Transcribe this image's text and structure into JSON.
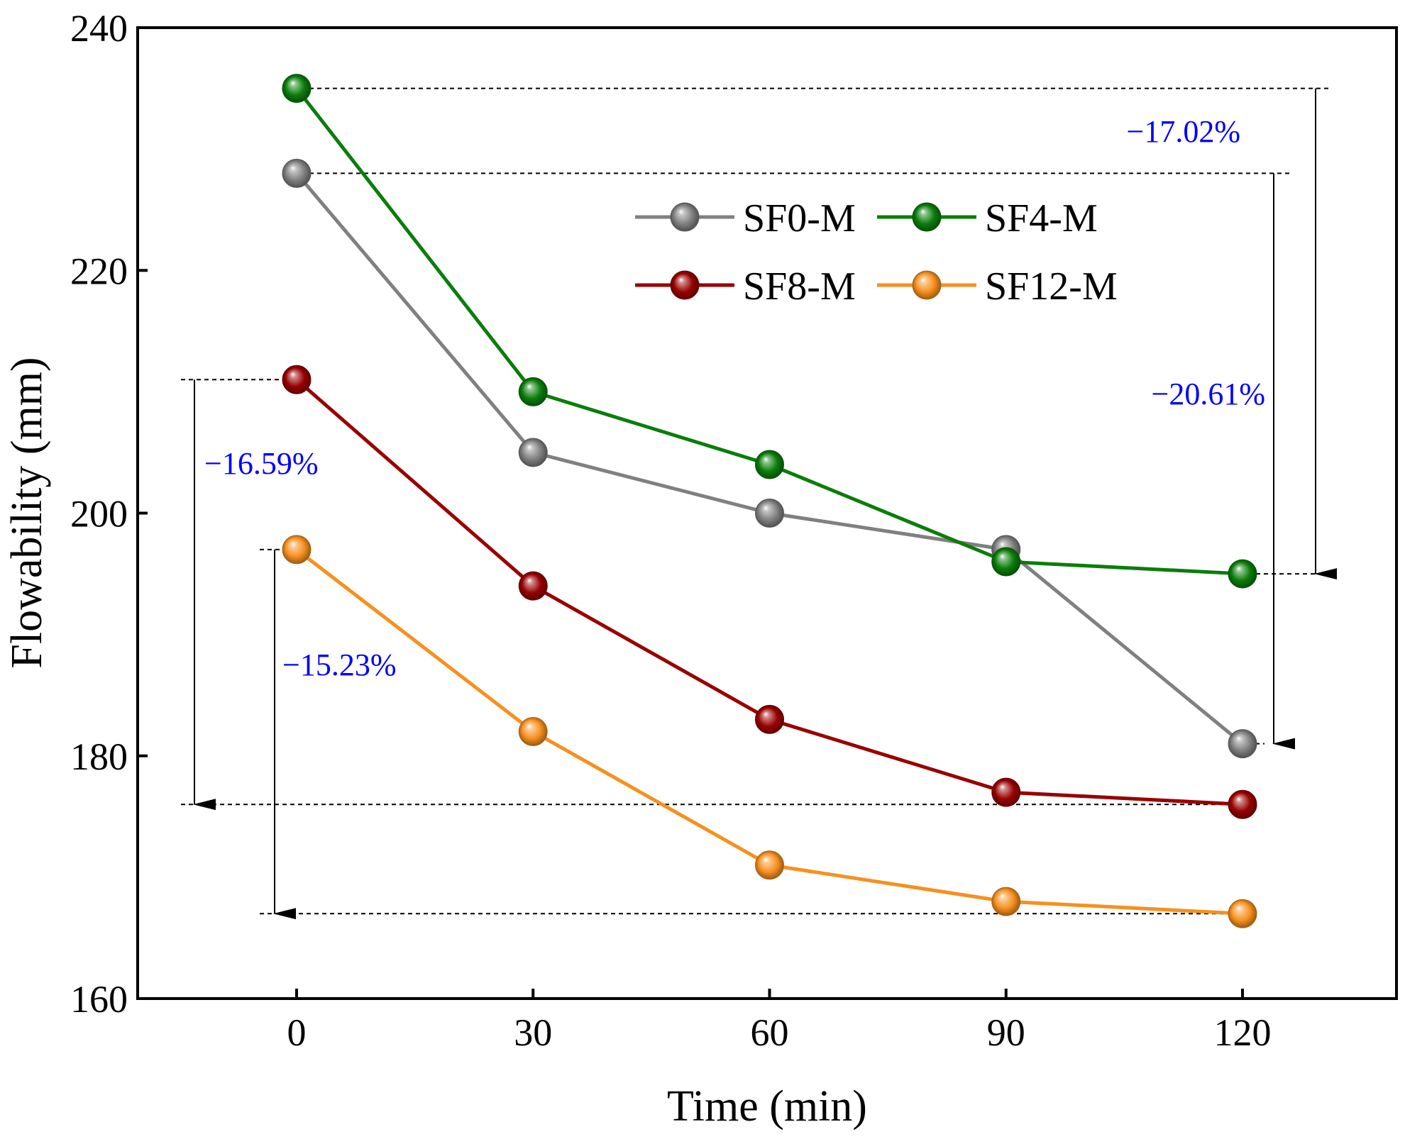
{
  "chart_data": {
    "type": "line",
    "xlabel": "Time (min)",
    "ylabel": "Flowability (mm)",
    "x": [
      0,
      30,
      60,
      90,
      120
    ],
    "x_tick_labels": [
      "0",
      "30",
      "60",
      "90",
      "120"
    ],
    "xlim": [
      -20,
      140
    ],
    "ylim": [
      160,
      240
    ],
    "y_ticks": [
      160,
      180,
      200,
      220,
      240
    ],
    "y_tick_labels": [
      "160",
      "180",
      "200",
      "220",
      "240"
    ],
    "grid": false,
    "legend_position": "top-right",
    "series": [
      {
        "name": "SF0-M",
        "color": "#808080",
        "values": [
          228,
          205,
          200,
          197,
          181
        ]
      },
      {
        "name": "SF4-M",
        "color": "#0a7d0a",
        "values": [
          235,
          210,
          204,
          196,
          195
        ]
      },
      {
        "name": "SF8-M",
        "color": "#990000",
        "values": [
          211,
          194,
          183,
          177,
          176
        ]
      },
      {
        "name": "SF12-M",
        "color": "#f7901e",
        "values": [
          197,
          182,
          171,
          168,
          167
        ]
      }
    ],
    "annotations": [
      {
        "text": "−17.02%",
        "series": "SF4-M",
        "color": "#0000ff"
      },
      {
        "text": "−20.61%",
        "series": "SF0-M",
        "color": "#0000ff"
      },
      {
        "text": "−16.59%",
        "series": "SF8-M",
        "color": "#0000ff"
      },
      {
        "text": "−15.23%",
        "series": "SF12-M",
        "color": "#0000ff"
      }
    ]
  }
}
